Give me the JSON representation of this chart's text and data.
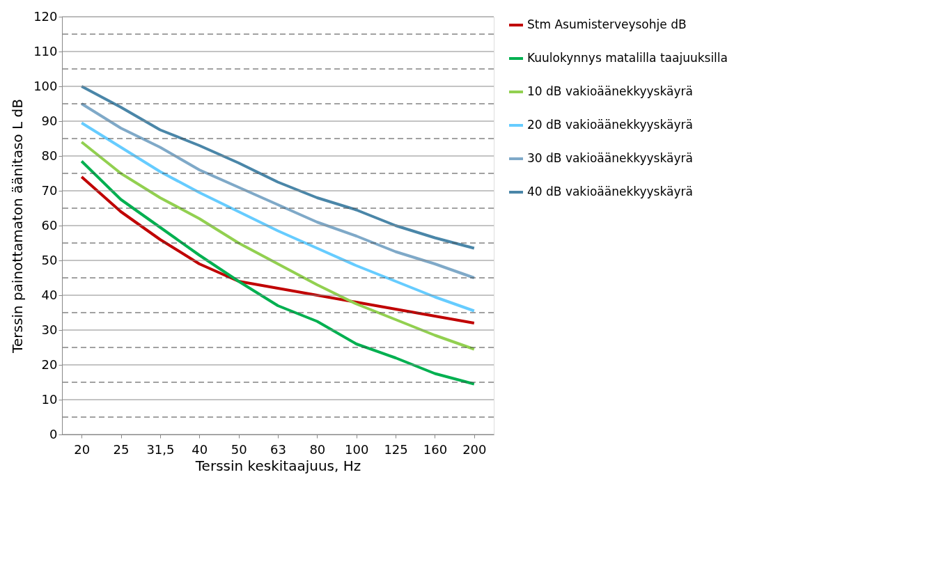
{
  "chart_data": {
    "type": "line",
    "xlabel": "Terssin keskitaajuus, Hz",
    "ylabel": "Terssin painottamaton äänitaso L dB",
    "categories": [
      "20",
      "25",
      "31,5",
      "40",
      "50",
      "63",
      "80",
      "100",
      "125",
      "160",
      "200"
    ],
    "series": [
      {
        "name": "Stm Asumisterveysohje dB",
        "color": "#c00000",
        "values": [
          74,
          64,
          56,
          49,
          44,
          42,
          40,
          38,
          36,
          34,
          32
        ]
      },
      {
        "name": "Kuulokynnys matalilla taajuuksilla",
        "color": "#00b050",
        "values": [
          78.5,
          67.5,
          59.5,
          51.5,
          44,
          37,
          32.5,
          26,
          22,
          17.5,
          14.5
        ]
      },
      {
        "name": "10 dB vakioäänekkyyskäyrä",
        "color": "#92d050",
        "values": [
          84,
          75,
          68,
          62,
          55,
          49,
          43,
          37.5,
          33,
          28.5,
          24.5
        ]
      },
      {
        "name": "20 dB vakioäänekkyyskäyrä",
        "color": "#66ccff",
        "values": [
          89.5,
          82.5,
          75.5,
          69.5,
          64,
          58.5,
          53.5,
          48.5,
          44,
          39.5,
          35.5
        ]
      },
      {
        "name": "30 dB vakioäänekkyyskäyrä",
        "color": "#7fa9c8",
        "values": [
          95,
          88,
          82.5,
          76,
          71,
          66,
          61,
          57,
          52.5,
          49,
          45
        ]
      },
      {
        "name": "40 dB vakioäänekkyyskäyrä",
        "color": "#4a86a8",
        "values": [
          100,
          94,
          87.5,
          83,
          78,
          72.5,
          68,
          64.5,
          60,
          56.5,
          53.5
        ]
      }
    ],
    "ylim": [
      0,
      120
    ],
    "yticks": [
      0,
      {
        "value": 5,
        "label": null
      },
      10,
      {
        "value": 15,
        "label": null
      },
      20,
      {
        "value": 25,
        "label": null
      },
      30,
      {
        "value": 35,
        "label": null
      },
      40,
      {
        "value": 45,
        "label": null
      },
      50,
      {
        "value": 55,
        "label": null
      },
      60,
      {
        "value": 65,
        "label": null
      },
      70,
      {
        "value": 75,
        "label": null
      },
      80,
      {
        "value": 85,
        "label": null
      },
      90,
      {
        "value": 95,
        "label": null
      },
      100,
      {
        "value": 105,
        "label": null
      },
      110,
      {
        "value": 115,
        "label": null
      },
      120
    ],
    "grid": "y",
    "legend": "right",
    "marker": "none",
    "line_style": "solid"
  }
}
